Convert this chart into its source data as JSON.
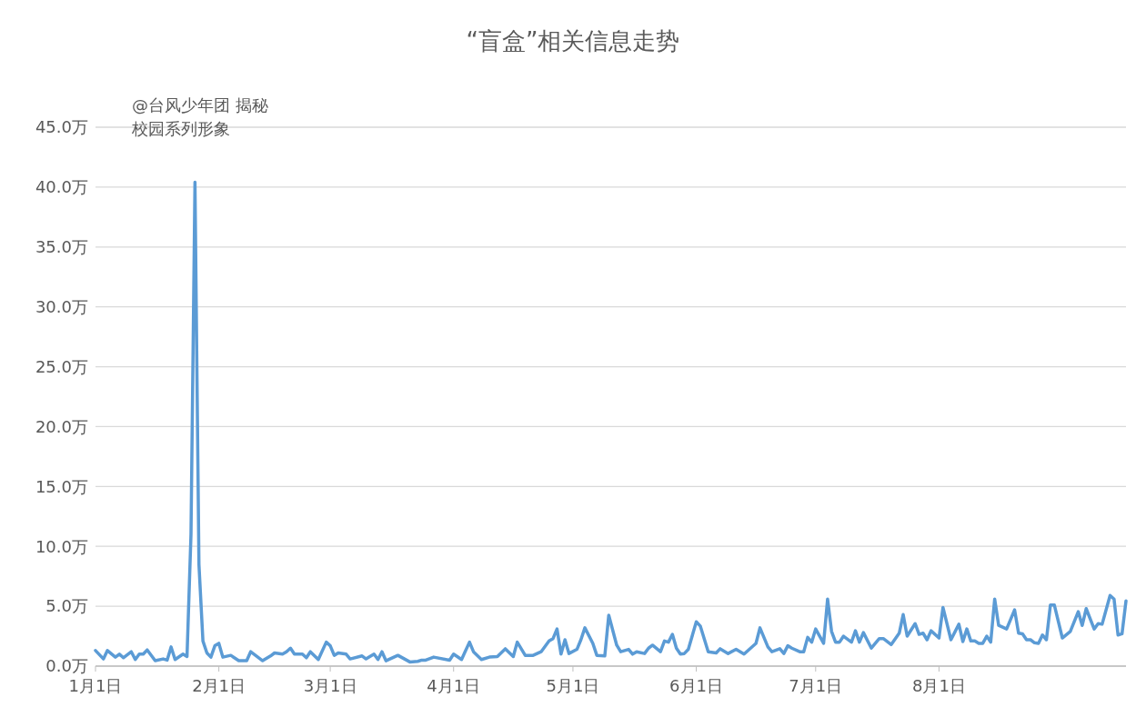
{
  "chart_data": {
    "type": "line",
    "title": "“盲盒”相关信息走势",
    "annotations": [
      "@台风少年团 揭秘校园系列形象"
    ],
    "x": [
      "--01-01",
      "--01-03",
      "--01-04",
      "--01-06",
      "--01-07",
      "--01-08",
      "--01-10",
      "--01-11",
      "--01-12",
      "--01-13",
      "--01-14",
      "--01-16",
      "--01-18",
      "--01-19",
      "--01-20",
      "--01-21",
      "--01-23",
      "--01-24",
      "--01-25",
      "--01-26",
      "--01-27",
      "--01-28",
      "--01-29",
      "--01-30",
      "--01-31",
      "--02-01",
      "--02-02",
      "--02-04",
      "--02-06",
      "--02-08",
      "--02-09",
      "--02-12",
      "--02-14",
      "--02-15",
      "--02-17",
      "--02-18",
      "--02-19",
      "--02-20",
      "--02-22",
      "--02-23",
      "--02-24",
      "--02-26",
      "--02-28",
      "--03-01",
      "--03-02",
      "--03-03",
      "--03-05",
      "--03-06",
      "--03-09",
      "--03-10",
      "--03-12",
      "--03-13",
      "--03-14",
      "--03-15",
      "--03-17",
      "--03-18",
      "--03-21",
      "--03-23",
      "--03-24",
      "--03-25",
      "--03-27",
      "--03-31",
      "--04-01",
      "--04-03",
      "--04-05",
      "--04-06",
      "--04-08",
      "--04-10",
      "--04-12",
      "--04-14",
      "--04-16",
      "--04-17",
      "--04-19",
      "--04-21",
      "--04-23",
      "--04-25",
      "--04-26",
      "--04-27",
      "--04-28",
      "--04-29",
      "--04-30",
      "--05-02",
      "--05-03",
      "--05-04",
      "--05-06",
      "--05-07",
      "--05-09",
      "--05-10",
      "--05-12",
      "--05-13",
      "--05-15",
      "--05-16",
      "--05-17",
      "--05-19",
      "--05-20",
      "--05-21",
      "--05-23",
      "--05-24",
      "--05-25",
      "--05-26",
      "--05-27",
      "--05-28",
      "--05-29",
      "--05-30",
      "--06-01",
      "--06-02",
      "--06-04",
      "--06-06",
      "--06-07",
      "--06-09",
      "--06-11",
      "--06-13",
      "--06-16",
      "--06-17",
      "--06-19",
      "--06-20",
      "--06-22",
      "--06-23",
      "--06-24",
      "--06-25",
      "--06-27",
      "--06-28",
      "--06-29",
      "--06-30",
      "--07-01",
      "--07-03",
      "--07-04",
      "--07-05",
      "--07-06",
      "--07-07",
      "--07-08",
      "--07-10",
      "--07-11",
      "--07-12",
      "--07-13",
      "--07-15",
      "--07-17",
      "--07-18",
      "--07-20",
      "--07-22",
      "--07-23",
      "--07-24",
      "--07-26",
      "--07-27",
      "--07-28",
      "--07-29",
      "--07-30",
      "--08-01",
      "--08-02",
      "--08-04",
      "--08-06",
      "--08-07",
      "--08-08",
      "--08-09",
      "--08-10",
      "--08-11",
      "--08-12",
      "--08-13",
      "--08-14",
      "--08-15",
      "--08-16",
      "--08-18",
      "--08-20",
      "--08-21",
      "--08-22",
      "--08-23",
      "--08-24",
      "--08-25",
      "--08-26",
      "--08-27",
      "--08-28",
      "--08-29",
      "--08-30",
      "--09-01",
      "--09-03",
      "--09-05",
      "--09-06",
      "--09-07",
      "--09-09",
      "--09-10",
      "--09-11",
      "--09-13",
      "--09-14",
      "--09-15",
      "--09-16",
      "--09-17"
    ],
    "series": [
      {
        "color": "#5b9bd5",
        "values": [
          1.3,
          0.6,
          1.3,
          0.75,
          1.0,
          0.7,
          1.2,
          0.55,
          1.0,
          1.0,
          1.35,
          0.45,
          0.6,
          0.5,
          1.6,
          0.55,
          1.0,
          0.8,
          11,
          40.4,
          8.5,
          2.1,
          1.1,
          0.75,
          1.7,
          1.9,
          0.75,
          0.9,
          0.45,
          0.45,
          1.2,
          0.45,
          0.85,
          1.1,
          1.0,
          1.2,
          1.5,
          1.0,
          1.0,
          0.7,
          1.2,
          0.55,
          2.0,
          1.7,
          0.9,
          1.1,
          1.0,
          0.6,
          0.85,
          0.6,
          1.0,
          0.55,
          1.2,
          0.45,
          0.75,
          0.9,
          0.35,
          0.4,
          0.5,
          0.5,
          0.75,
          0.5,
          1.0,
          0.55,
          2.0,
          1.2,
          0.55,
          0.75,
          0.8,
          1.45,
          0.8,
          2.0,
          0.9,
          0.9,
          1.2,
          2.1,
          2.3,
          3.1,
          1.0,
          2.2,
          1.05,
          1.4,
          2.2,
          3.2,
          1.9,
          0.9,
          0.85,
          4.25,
          1.75,
          1.2,
          1.4,
          1.0,
          1.2,
          1.05,
          1.5,
          1.75,
          1.2,
          2.1,
          2.0,
          2.65,
          1.5,
          1.0,
          1.05,
          1.4,
          3.7,
          3.35,
          1.2,
          1.1,
          1.45,
          1.05,
          1.4,
          1.0,
          1.9,
          3.2,
          1.6,
          1.2,
          1.45,
          1.05,
          1.7,
          1.5,
          1.2,
          1.2,
          2.4,
          2.0,
          3.1,
          1.9,
          5.6,
          2.9,
          2.0,
          2.0,
          2.5,
          2.0,
          2.95,
          2.0,
          2.8,
          1.5,
          2.3,
          2.3,
          1.8,
          2.75,
          4.3,
          2.5,
          3.55,
          2.65,
          2.75,
          2.2,
          2.95,
          2.35,
          4.9,
          2.2,
          3.5,
          2.05,
          3.1,
          2.1,
          2.1,
          1.9,
          1.9,
          2.5,
          2.0,
          5.6,
          3.4,
          3.1,
          4.7,
          2.75,
          2.7,
          2.2,
          2.2,
          1.95,
          1.9,
          2.6,
          2.2,
          5.1,
          5.1,
          2.35,
          2.9,
          4.55,
          3.4,
          4.8,
          3.1,
          3.55,
          3.5,
          5.9,
          5.6,
          2.6,
          2.7,
          5.45
        ]
      }
    ],
    "xlim": [
      "--01-01",
      "--09-17"
    ],
    "xticks": [
      {
        "value": "--01-01",
        "label": "1月1日"
      },
      {
        "value": "--02-01",
        "label": "2月1日"
      },
      {
        "value": "--03-01",
        "label": "3月1日"
      },
      {
        "value": "--04-01",
        "label": "4月1日"
      },
      {
        "value": "--05-01",
        "label": "5月1日"
      },
      {
        "value": "--06-01",
        "label": "6月1日"
      },
      {
        "value": "--07-01",
        "label": "7月1日"
      },
      {
        "value": "--08-01",
        "label": "8月1日"
      }
    ],
    "ylim": [
      0,
      45
    ],
    "yticks": [
      {
        "value": 0,
        "label": "0.0万"
      },
      {
        "value": 5,
        "label": "5.0万"
      },
      {
        "value": 10,
        "label": "10.0万"
      },
      {
        "value": 15,
        "label": "15.0万"
      },
      {
        "value": 20,
        "label": "20.0万"
      },
      {
        "value": 25,
        "label": "25.0万"
      },
      {
        "value": 30,
        "label": "30.0万"
      },
      {
        "value": 35,
        "label": "35.0万"
      },
      {
        "value": 40,
        "label": "40.0万"
      },
      {
        "value": 45,
        "label": "45.0万"
      }
    ],
    "grid": "y",
    "marker": "none",
    "line_style": "solid"
  }
}
